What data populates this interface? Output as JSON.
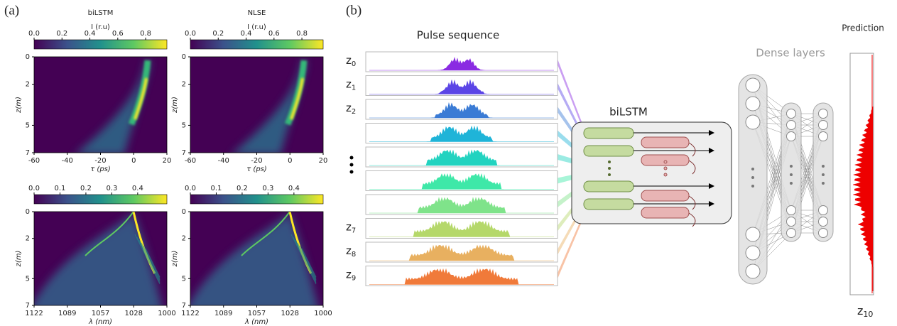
{
  "figure": {
    "panel_a": {
      "label": "(a)",
      "plots": [
        {
          "title": "biLSTM",
          "colorbar_label": "I (r.u)",
          "colorbar_ticks": [
            "0.0",
            "0.2",
            "0.4",
            "0.6",
            "0.8"
          ],
          "y_label": "z(m)",
          "y_ticks": [
            "0",
            "2",
            "5",
            "7"
          ],
          "x_label": "τ (ps)",
          "x_ticks": [
            "-60",
            "-40",
            "-20",
            "0",
            "20"
          ]
        },
        {
          "title": "NLSE",
          "colorbar_label": "I (r.u)",
          "colorbar_ticks": [
            "0.0",
            "0.2",
            "0.4",
            "0.6",
            "0.8"
          ],
          "y_label": "z(m)",
          "y_ticks": [
            "0",
            "2",
            "5",
            "7"
          ],
          "x_label": "τ (ps)",
          "x_ticks": [
            "-60",
            "-40",
            "-20",
            "0",
            "20"
          ]
        },
        {
          "colorbar_ticks": [
            "0.0",
            "0.1",
            "0.2",
            "0.3",
            "0.4"
          ],
          "y_label": "z(m)",
          "y_ticks": [
            "0",
            "2",
            "5",
            "7"
          ],
          "x_label": "λ (nm)",
          "x_ticks": [
            "1122",
            "1089",
            "1057",
            "1028",
            "1000"
          ]
        },
        {
          "colorbar_ticks": [
            "0.0",
            "0.1",
            "0.2",
            "0.3",
            "0.4"
          ],
          "y_label": "z(m)",
          "y_ticks": [
            "0",
            "2",
            "5",
            "7"
          ],
          "x_label": "λ (nm)",
          "x_ticks": [
            "1122",
            "1089",
            "1057",
            "1028",
            "1000"
          ]
        }
      ]
    },
    "panel_b": {
      "label": "(b)",
      "pulse_title": "Pulse sequence",
      "z_labels": [
        {
          "row": 0,
          "text": "z",
          "sub": "0"
        },
        {
          "row": 1,
          "text": "z",
          "sub": "1"
        },
        {
          "row": 2,
          "text": "z",
          "sub": "2"
        },
        {
          "row": 7,
          "text": "z",
          "sub": "7"
        },
        {
          "row": 8,
          "text": "z",
          "sub": "8"
        },
        {
          "row": 9,
          "text": "z",
          "sub": "9"
        }
      ],
      "lstm_label": "biLSTM",
      "dense_label": "Dense layers",
      "prediction_label": "Prediction",
      "output_label": {
        "text": "z",
        "sub": "10"
      }
    }
  }
}
